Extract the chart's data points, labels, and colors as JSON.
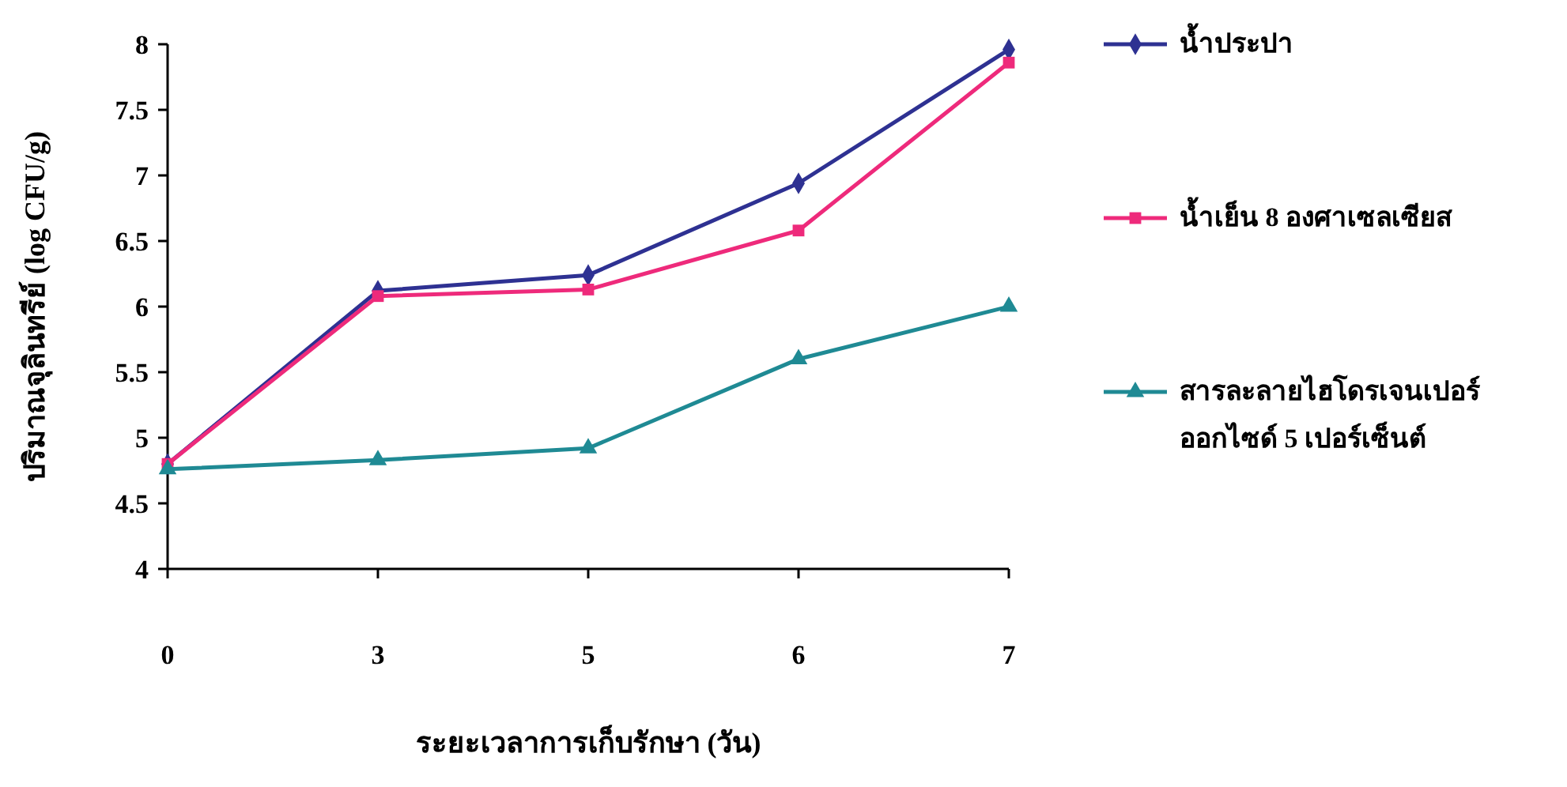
{
  "chart_data": {
    "type": "line",
    "xlabel": "ระยะเวลาการเก็บรักษา (วัน)",
    "ylabel": "ปริมาณจุลินทรีย์ (log CFU/g)",
    "categories": [
      "0",
      "3",
      "5",
      "6",
      "7"
    ],
    "ylim": [
      4,
      8
    ],
    "yticks": [
      4,
      4.5,
      5,
      5.5,
      6,
      6.5,
      7,
      7.5,
      8
    ],
    "grid": false,
    "legend": "right",
    "series": [
      {
        "name": "น้ำประปา",
        "color": "#2e3192",
        "marker": "diamond",
        "values": [
          4.8,
          6.12,
          6.24,
          6.94,
          7.96
        ]
      },
      {
        "name": "น้ำเย็น 8 องศาเซลเซียส",
        "color": "#ee2a7b",
        "marker": "square",
        "values": [
          4.8,
          6.08,
          6.13,
          6.58,
          7.86
        ]
      },
      {
        "name": "สารละลายไฮโดรเจนเปอร์ออกไซด์ 5 เปอร์เซ็นต์",
        "color": "#1f8a94",
        "marker": "triangle",
        "values": [
          4.76,
          4.83,
          4.92,
          5.6,
          6.0
        ]
      }
    ]
  }
}
